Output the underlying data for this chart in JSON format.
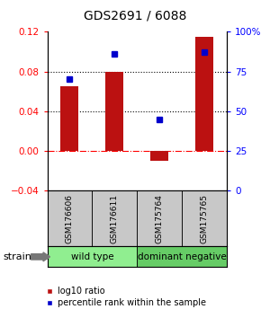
{
  "title": "GDS2691 / 6088",
  "samples": [
    "GSM176606",
    "GSM176611",
    "GSM175764",
    "GSM175765"
  ],
  "log10_ratio": [
    0.065,
    0.08,
    -0.01,
    0.115
  ],
  "percentile_rank": [
    70,
    86,
    45,
    87
  ],
  "groups": [
    {
      "name": "wild type",
      "samples": [
        0,
        1
      ],
      "color": "#90EE90"
    },
    {
      "name": "dominant negative",
      "samples": [
        2,
        3
      ],
      "color": "#66CC66"
    }
  ],
  "bar_color": "#BB1111",
  "dot_color": "#0000CC",
  "ylim_left": [
    -0.04,
    0.12
  ],
  "ylim_right": [
    0,
    100
  ],
  "yticks_left": [
    -0.04,
    0,
    0.04,
    0.08,
    0.12
  ],
  "yticks_right": [
    0,
    25,
    50,
    75,
    100
  ],
  "hlines": [
    0.04,
    0.08
  ],
  "bg_color": "#ffffff",
  "strain_label": "strain",
  "legend_ratio_label": "log10 ratio",
  "legend_pct_label": "percentile rank within the sample",
  "sample_box_color": "#C8C8C8",
  "title_fontsize": 10,
  "tick_fontsize": 7.5,
  "sample_fontsize": 6.5,
  "group_fontsize": 7.5,
  "legend_fontsize": 7,
  "strain_fontsize": 8
}
